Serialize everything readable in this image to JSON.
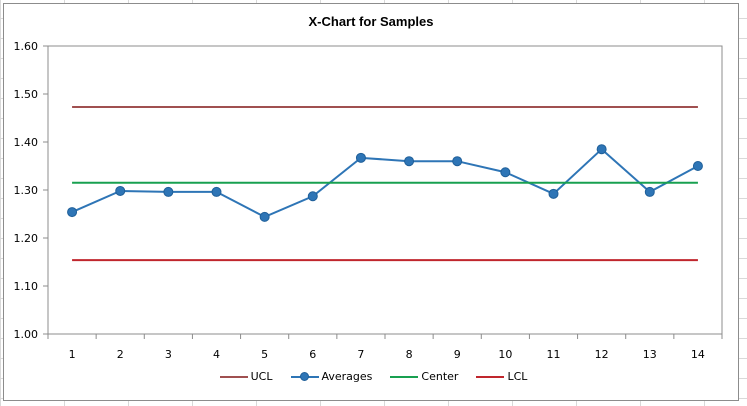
{
  "chart_data": {
    "type": "line",
    "title": "X-Chart for Samples",
    "xlabel": "",
    "ylabel": "",
    "categories": [
      "1",
      "2",
      "3",
      "4",
      "5",
      "6",
      "7",
      "8",
      "9",
      "10",
      "11",
      "12",
      "13",
      "14"
    ],
    "ylim": [
      1.0,
      1.6
    ],
    "yticks": [
      "1.00",
      "1.10",
      "1.20",
      "1.30",
      "1.40",
      "1.50",
      "1.60"
    ],
    "grid": false,
    "legend_position": "bottom",
    "series": [
      {
        "name": "UCL",
        "color": "#a05050",
        "marker": false,
        "values": [
          1.473,
          1.473,
          1.473,
          1.473,
          1.473,
          1.473,
          1.473,
          1.473,
          1.473,
          1.473,
          1.473,
          1.473,
          1.473,
          1.473
        ]
      },
      {
        "name": "Averages",
        "color": "#2e75b6",
        "marker": true,
        "values": [
          1.254,
          1.298,
          1.296,
          1.296,
          1.244,
          1.287,
          1.367,
          1.36,
          1.36,
          1.337,
          1.292,
          1.385,
          1.296,
          1.35
        ]
      },
      {
        "name": "Center",
        "color": "#18a050",
        "marker": false,
        "values": [
          1.315,
          1.315,
          1.315,
          1.315,
          1.315,
          1.315,
          1.315,
          1.315,
          1.315,
          1.315,
          1.315,
          1.315,
          1.315,
          1.315
        ]
      },
      {
        "name": "LCL",
        "color": "#c0262d",
        "marker": false,
        "values": [
          1.154,
          1.154,
          1.154,
          1.154,
          1.154,
          1.154,
          1.154,
          1.154,
          1.154,
          1.154,
          1.154,
          1.154,
          1.154,
          1.154
        ]
      }
    ]
  }
}
